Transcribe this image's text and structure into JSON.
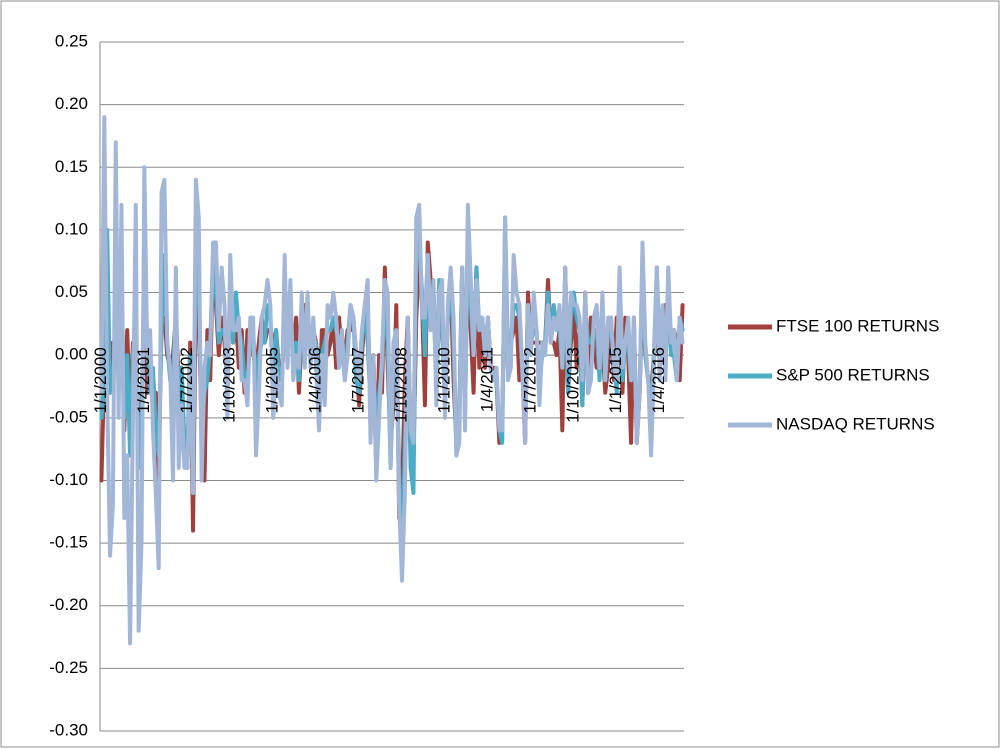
{
  "chart_data": {
    "type": "line",
    "categories": [
      "1/1/2000",
      null,
      null,
      null,
      null,
      null,
      null,
      null,
      null,
      null,
      null,
      null,
      null,
      null,
      null,
      "1/4/2001",
      null,
      null,
      null,
      null,
      null,
      null,
      null,
      null,
      null,
      null,
      null,
      null,
      null,
      null,
      "1/7/2002",
      null,
      null,
      null,
      null,
      null,
      null,
      null,
      null,
      null,
      null,
      null,
      null,
      null,
      null,
      "1/10/2003",
      null,
      null,
      null,
      null,
      null,
      null,
      null,
      null,
      null,
      null,
      null,
      null,
      null,
      null,
      "1/1/2005",
      null,
      null,
      null,
      null,
      null,
      null,
      null,
      null,
      null,
      null,
      null,
      null,
      null,
      null,
      "1/4/2006",
      null,
      null,
      null,
      null,
      null,
      null,
      null,
      null,
      null,
      null,
      null,
      null,
      null,
      null,
      "1/7/2007",
      null,
      null,
      null,
      null,
      null,
      null,
      null,
      null,
      null,
      null,
      null,
      null,
      null,
      null,
      "1/10/2008",
      null,
      null,
      null,
      null,
      null,
      null,
      null,
      null,
      null,
      null,
      null,
      null,
      null,
      null,
      "1/1/2010",
      null,
      null,
      null,
      null,
      null,
      null,
      null,
      null,
      null,
      null,
      null,
      null,
      null,
      null,
      "1/4/2011",
      null,
      null,
      null,
      null,
      null,
      null,
      null,
      null,
      null,
      null,
      null,
      null,
      null,
      null,
      "1/7/2012",
      null,
      null,
      null,
      null,
      null,
      null,
      null,
      null,
      null,
      null,
      null,
      null,
      null,
      null,
      "1/10/2013",
      null,
      null,
      null,
      null,
      null,
      null,
      null,
      null,
      null,
      null,
      null,
      null,
      null,
      null,
      "1/1/2015",
      null,
      null,
      null,
      null,
      null,
      null,
      null,
      null,
      null,
      null,
      null,
      null,
      null,
      null,
      "1/4/2016",
      null,
      null,
      null,
      null,
      null,
      null,
      null,
      null
    ],
    "series": [
      {
        "name": "FTSE 100 RETURNS",
        "color": "#a0403c",
        "values": [
          -0.1,
          -0.01,
          0.05,
          -0.03,
          0.01,
          -0.01,
          0.02,
          0.06,
          -0.06,
          0.02,
          -0.05,
          0.01,
          0.01,
          -0.06,
          -0.05,
          0.05,
          -0.03,
          -0.02,
          -0.03,
          -0.03,
          -0.1,
          0.03,
          0.03,
          0,
          -0.01,
          0,
          0.03,
          -0.02,
          -0.01,
          -0.08,
          -0.09,
          0.01,
          -0.14,
          0.06,
          0.03,
          -0.06,
          -0.1,
          0.02,
          -0.02,
          0.08,
          0.04,
          0,
          0.03,
          0.01,
          -0.02,
          0.05,
          0.01,
          0.03,
          -0.01,
          0.02,
          -0.03,
          0.02,
          0,
          0.01,
          -0.01,
          0.01,
          0.03,
          0.01,
          0.02,
          0.02,
          0.01,
          0.02,
          -0.01,
          -0.02,
          0.03,
          0.03,
          0.03,
          0,
          0.03,
          -0.03,
          0.02,
          0.04,
          0.03,
          0.01,
          0.02,
          0.01,
          -0.05,
          0.02,
          0.02,
          0,
          0.01,
          0.03,
          -0.01,
          0.03,
          0,
          0,
          0.02,
          0.02,
          0.03,
          0,
          -0.04,
          0,
          0.03,
          0.04,
          -0.04,
          0,
          -0.09,
          0,
          -0.03,
          0.07,
          -0.01,
          -0.07,
          -0.04,
          0.04,
          -0.13,
          -0.11,
          -0.02,
          0.03,
          -0.06,
          -0.08,
          0.03,
          0.08,
          0.04,
          -0.04,
          0.09,
          0.06,
          0.05,
          -0.02,
          0.03,
          0.04,
          -0.04,
          0.03,
          0.06,
          -0.02,
          -0.07,
          -0.05,
          0.07,
          -0.01,
          0.06,
          0.02,
          -0.03,
          0.07,
          -0.01,
          0.02,
          -0.01,
          0.03,
          -0.01,
          -0.01,
          -0.02,
          -0.07,
          -0.05,
          0.08,
          -0.01,
          0.01,
          0.02,
          0.03,
          -0.02,
          -0.01,
          -0.07,
          0.05,
          0.01,
          0.01,
          0.01,
          0.01,
          0.01,
          0.01,
          0.06,
          0.01,
          0.01,
          0,
          0.02,
          -0.06,
          0.07,
          -0.03,
          0.01,
          0.04,
          -0.01,
          0.02,
          -0.04,
          0.05,
          -0.03,
          0.03,
          0.01,
          -0.01,
          0,
          0.01,
          -0.03,
          -0.01,
          0.03,
          -0.02,
          0.03,
          0.03,
          -0.03,
          0.03,
          0,
          -0.07,
          0.03,
          -0.07,
          -0.03,
          0.05,
          0,
          -0.02,
          -0.03,
          0,
          0.01,
          0.01,
          0,
          0.04,
          0.03,
          0.01,
          0.02,
          0.01,
          -0.02,
          0.04
        ]
      },
      {
        "name": "S&P 500 RETURNS",
        "color": "#4bacc6",
        "values": [
          -0.05,
          -0.02,
          0.1,
          -0.03,
          -0.02,
          0.02,
          -0.02,
          0.06,
          -0.05,
          0,
          -0.08,
          0,
          0.03,
          -0.09,
          -0.06,
          0.08,
          0.01,
          -0.03,
          -0.01,
          -0.06,
          -0.08,
          0.02,
          0.08,
          0.01,
          -0.02,
          -0.02,
          0.04,
          -0.06,
          -0.01,
          -0.07,
          -0.08,
          0,
          -0.11,
          0.09,
          0.06,
          -0.06,
          -0.03,
          -0.02,
          0.01,
          0.08,
          0.05,
          0.01,
          0.02,
          0.02,
          -0.01,
          0.05,
          0.01,
          0.05,
          0.02,
          0.01,
          -0.02,
          -0.02,
          0.01,
          0.02,
          -0.03,
          0,
          0.01,
          0.01,
          0.04,
          0.03,
          -0.03,
          0.02,
          -0.02,
          -0.02,
          0.03,
          0,
          0.04,
          -0.01,
          0.01,
          -0.02,
          0.04,
          0,
          0.03,
          0,
          0.01,
          0.01,
          -0.03,
          0,
          0.01,
          0.02,
          0.02,
          0.03,
          0.02,
          0.01,
          0.01,
          -0.02,
          0.01,
          0.04,
          0.03,
          -0.02,
          -0.03,
          0.01,
          0.04,
          0.01,
          -0.04,
          -0.01,
          -0.06,
          -0.03,
          -0.01,
          0.05,
          0.01,
          -0.09,
          -0.01,
          0.01,
          -0.09,
          -0.17,
          -0.07,
          0.01,
          -0.09,
          -0.11,
          0.09,
          0.09,
          0.05,
          0,
          0.07,
          0.03,
          0.04,
          -0.02,
          0.06,
          0.02,
          -0.04,
          0.03,
          0.06,
          0.01,
          -0.08,
          -0.05,
          0.07,
          -0.05,
          0.09,
          0.04,
          0,
          0.07,
          0.02,
          0.03,
          0,
          0.03,
          -0.01,
          -0.02,
          -0.02,
          -0.06,
          -0.07,
          0.11,
          0,
          0.01,
          0.04,
          0.04,
          0.03,
          -0.01,
          -0.06,
          0.04,
          0.01,
          0.02,
          0.02,
          -0.02,
          0,
          0.01,
          0.05,
          0.01,
          0.04,
          0.02,
          0.02,
          -0.01,
          0.05,
          -0.03,
          0.03,
          0.05,
          0.03,
          0.02,
          -0.04,
          0.04,
          0.01,
          0.01,
          0.02,
          0.02,
          -0.02,
          0.04,
          -0.02,
          0.02,
          0.02,
          0,
          -0.03,
          0.05,
          -0.02,
          0.01,
          0.01,
          -0.02,
          0.02,
          -0.06,
          -0.03,
          0.08,
          0,
          -0.02,
          -0.05,
          0,
          0.07,
          0,
          0.02,
          0,
          0.04,
          0,
          0,
          -0.02,
          0.03,
          0.02
        ]
      },
      {
        "name": "NASDAQ RETURNS",
        "color": "#a2b6d8",
        "values": [
          -0.03,
          0.19,
          -0.03,
          -0.16,
          -0.12,
          0.17,
          -0.05,
          0.12,
          -0.13,
          -0.08,
          -0.23,
          -0.05,
          0.12,
          -0.22,
          -0.15,
          0.15,
          0,
          0.02,
          -0.06,
          -0.11,
          -0.17,
          0.13,
          0.14,
          0.01,
          -0.01,
          -0.1,
          0.07,
          -0.09,
          -0.04,
          -0.09,
          -0.09,
          -0.01,
          -0.11,
          0.14,
          0.11,
          -0.1,
          -0.01,
          0.01,
          0,
          0.09,
          0.09,
          0.02,
          0.07,
          0.04,
          -0.05,
          0.08,
          0.02,
          0.02,
          0.03,
          -0.02,
          -0.02,
          -0.04,
          0.03,
          0.03,
          -0.08,
          -0.03,
          0.03,
          0.04,
          0.06,
          0.04,
          -0.05,
          -0.01,
          -0.03,
          -0.04,
          0.08,
          -0.01,
          0.06,
          -0.02,
          0,
          -0.01,
          0.05,
          -0.01,
          0.05,
          -0.01,
          0.03,
          -0.01,
          -0.06,
          0,
          -0.04,
          0.04,
          0.03,
          0.05,
          0.03,
          -0.01,
          0.02,
          -0.02,
          0,
          0.04,
          0.03,
          0,
          -0.02,
          0.02,
          0.04,
          0.06,
          -0.07,
          0,
          -0.1,
          -0.05,
          0,
          0.06,
          0.05,
          -0.09,
          0.01,
          0.02,
          -0.12,
          -0.18,
          -0.11,
          0.03,
          -0.06,
          -0.07,
          0.11,
          0.12,
          0.03,
          0.03,
          0.08,
          0.02,
          0.06,
          -0.04,
          0.05,
          0.06,
          -0.05,
          0.04,
          0.07,
          0.03,
          -0.08,
          -0.07,
          0.07,
          -0.06,
          0.12,
          0.06,
          0,
          0.06,
          0.02,
          0.03,
          0,
          0.03,
          -0.01,
          -0.02,
          -0.01,
          -0.06,
          -0.06,
          0.11,
          -0.02,
          -0.01,
          0.08,
          0.05,
          0.04,
          -0.01,
          -0.07,
          0.04,
          0,
          0.05,
          0.02,
          -0.04,
          0.01,
          0,
          0.04,
          0.01,
          0.03,
          0.02,
          0.04,
          -0.01,
          0.07,
          -0.01,
          0.05,
          0.04,
          0.04,
          0.03,
          -0.02,
          0.05,
          -0.03,
          -0.02,
          0.03,
          0.04,
          -0.01,
          0.05,
          -0.02,
          0.03,
          0.03,
          -0.01,
          -0.02,
          0.07,
          -0.01,
          0.01,
          0.03,
          -0.02,
          0.03,
          -0.07,
          -0.03,
          0.09,
          0.01,
          -0.02,
          -0.08,
          -0.01,
          0.07,
          -0.02,
          0.04,
          -0.02,
          0.07,
          0.01,
          0.02,
          -0.02,
          0.03,
          0.01
        ]
      }
    ],
    "ylim": [
      -0.3,
      0.25
    ],
    "yticks": [
      {
        "value": -0.3,
        "label": "-0.30"
      },
      {
        "value": -0.25,
        "label": "-0.25"
      },
      {
        "value": -0.2,
        "label": "-0.20"
      },
      {
        "value": -0.15,
        "label": "-0.15"
      },
      {
        "value": -0.1,
        "label": "-0.10"
      },
      {
        "value": -0.05,
        "label": "-0.05"
      },
      {
        "value": 0,
        "label": "0.00"
      },
      {
        "value": 0.05,
        "label": "0.05"
      },
      {
        "value": 0.1,
        "label": "0.10"
      },
      {
        "value": 0.15,
        "label": "0.15"
      },
      {
        "value": 0.2,
        "label": "0.20"
      },
      {
        "value": 0.25,
        "label": "0.25"
      }
    ],
    "grid": true,
    "legend": "right"
  }
}
